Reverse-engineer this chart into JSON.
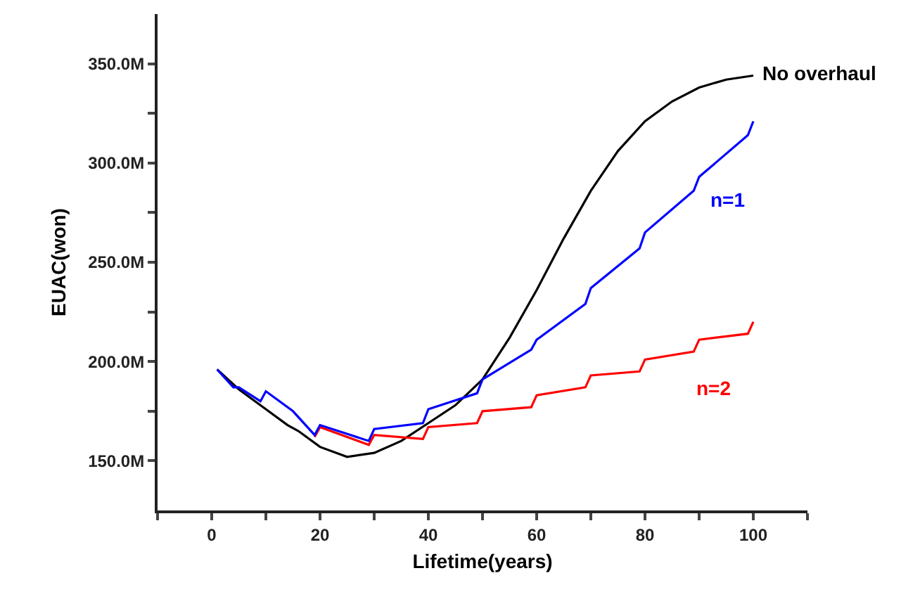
{
  "chart_data": {
    "type": "line",
    "xlabel": "Lifetime(years)",
    "ylabel": "EUAC(won)",
    "xlim": [
      -10,
      110
    ],
    "ylim": [
      125,
      375
    ],
    "xticks": [
      {
        "value": -10,
        "label": null
      },
      0,
      {
        "value": 10,
        "label": null
      },
      20,
      {
        "value": 30,
        "label": null
      },
      40,
      {
        "value": 50,
        "label": null
      },
      60,
      {
        "value": 70,
        "label": null
      },
      80,
      {
        "value": 90,
        "label": null
      },
      100,
      {
        "value": 110,
        "label": null
      }
    ],
    "yticks": [
      {
        "value": 150,
        "label": "150.0M"
      },
      {
        "value": 175,
        "label": null
      },
      {
        "value": 200,
        "label": "200.0M"
      },
      {
        "value": 225,
        "label": null
      },
      {
        "value": 250,
        "label": "250.0M"
      },
      {
        "value": 275,
        "label": null
      },
      {
        "value": 300,
        "label": "300.0M"
      },
      {
        "value": 325,
        "label": null
      },
      {
        "value": 350,
        "label": "350.0M"
      }
    ],
    "grid": false,
    "legend": false,
    "marker": "none",
    "line_style": "solid",
    "series": [
      {
        "name": "No overhaul",
        "color": "#000000",
        "x": [
          1,
          5,
          10,
          14,
          16,
          20,
          25,
          30,
          35,
          40,
          45,
          50,
          55,
          60,
          65,
          70,
          75,
          80,
          85,
          90,
          95,
          100
        ],
        "values": [
          196,
          186,
          176,
          168,
          165,
          157,
          152,
          154,
          160,
          169,
          178,
          191,
          212,
          236,
          262,
          286,
          306,
          321,
          331,
          338,
          342,
          344
        ]
      },
      {
        "name": "n=1",
        "color": "#0000ff",
        "x": [
          1,
          4,
          5,
          9,
          10,
          15,
          19,
          20,
          29,
          30,
          39,
          40,
          49,
          50,
          59,
          60,
          69,
          70,
          79,
          80,
          89,
          90,
          99,
          100
        ],
        "values": [
          196,
          187,
          187,
          180,
          185,
          175,
          163,
          168,
          160,
          166,
          169,
          176,
          184,
          191,
          206,
          211,
          229,
          237,
          257,
          265,
          286,
          293,
          314,
          321
        ]
      },
      {
        "name": "n=2",
        "color": "#ff0000",
        "x": [
          19,
          20,
          29,
          30,
          39,
          40,
          49,
          50,
          59,
          60,
          69,
          70,
          79,
          80,
          89,
          90,
          99,
          100
        ],
        "values": [
          162,
          167,
          158,
          163,
          161,
          167,
          169,
          175,
          177,
          183,
          187,
          193,
          195,
          201,
          205,
          211,
          214,
          220
        ]
      }
    ]
  }
}
